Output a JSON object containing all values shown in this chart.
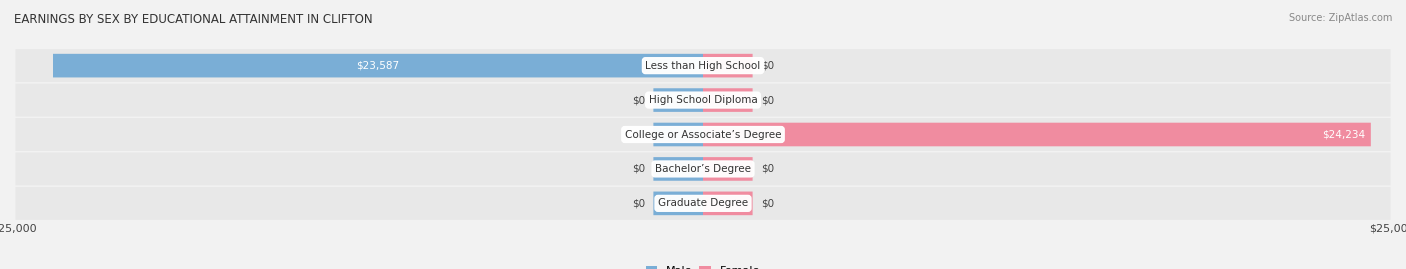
{
  "title": "EARNINGS BY SEX BY EDUCATIONAL ATTAINMENT IN CLIFTON",
  "source": "Source: ZipAtlas.com",
  "categories": [
    "Less than High School",
    "High School Diploma",
    "College or Associate’s Degree",
    "Bachelor’s Degree",
    "Graduate Degree"
  ],
  "male_values": [
    23587,
    0,
    0,
    0,
    0
  ],
  "female_values": [
    0,
    0,
    24234,
    0,
    0
  ],
  "male_color": "#7aaed6",
  "female_color": "#f08ca0",
  "max_value": 25000,
  "stub_size": 1800,
  "bg_color": "#f2f2f2",
  "row_bg_color": "#e8e8e8",
  "title_fontsize": 8.5,
  "label_fontsize": 7.5,
  "tick_fontsize": 8,
  "legend_fontsize": 8,
  "value_label_fontsize": 7.5
}
